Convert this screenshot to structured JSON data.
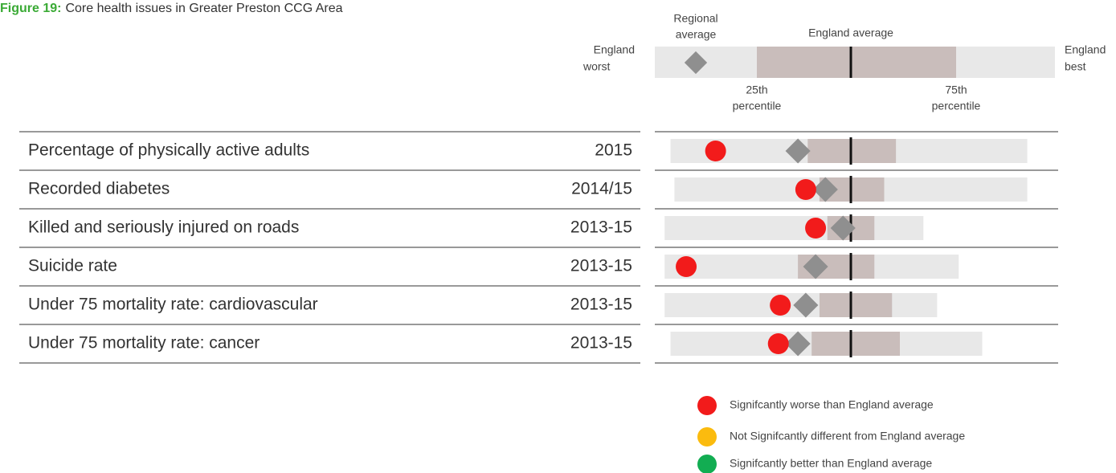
{
  "chart_data": {
    "type": "spine",
    "title_prefix": "Figure 19:",
    "title": "Core health issues in Greater Preston CCG Area",
    "key": {
      "worst": [
        "England",
        "worst"
      ],
      "best": [
        "England",
        "best"
      ],
      "regional": [
        "Regional",
        "average"
      ],
      "average": "England average",
      "p25": [
        "25th",
        "percentile"
      ],
      "p75": [
        "75th",
        "percentile"
      ]
    },
    "xlim": [
      -1,
      1
    ],
    "average": 0,
    "rows": [
      {
        "indicator": "Percentage of physically active adults",
        "period": "2015",
        "worst": -0.92,
        "p25": -0.22,
        "p75": 0.23,
        "best": 0.9,
        "regional": -0.27,
        "value": -0.69,
        "status": 0
      },
      {
        "indicator": "Recorded diabetes",
        "period": "2014/15",
        "worst": -0.9,
        "p25": -0.16,
        "p75": 0.17,
        "best": 0.9,
        "regional": -0.13,
        "value": -0.23,
        "status": 0
      },
      {
        "indicator": "Killed and seriously injured on roads",
        "period": "2013-15",
        "worst": -0.95,
        "p25": -0.12,
        "p75": 0.12,
        "best": 0.37,
        "regional": -0.04,
        "value": -0.18,
        "status": 0
      },
      {
        "indicator": "Suicide rate",
        "period": "2013-15",
        "worst": -0.95,
        "p25": -0.27,
        "p75": 0.12,
        "best": 0.55,
        "regional": -0.18,
        "value": -0.84,
        "status": 0
      },
      {
        "indicator": "Under 75 mortality rate: cardiovascular",
        "period": "2013-15",
        "worst": -0.95,
        "p25": -0.16,
        "p75": 0.21,
        "best": 0.44,
        "regional": -0.23,
        "value": -0.36,
        "status": 0
      },
      {
        "indicator": "Under 75 mortality rate: cancer",
        "period": "2013-15",
        "worst": -0.92,
        "p25": -0.2,
        "p75": 0.25,
        "best": 0.67,
        "regional": -0.27,
        "value": -0.37,
        "status": 0
      }
    ],
    "legend": [
      {
        "name": "Signifcantly worse than  England average",
        "color": "#f21b1b"
      },
      {
        "name": "Not Signifcantly different from  England average",
        "color": "#fbbb0e"
      },
      {
        "name": "Signifcantly better than England average",
        "color": "#12ad52"
      }
    ],
    "colors": {
      "range": "#e8e8e8",
      "iqr": "#c9bdbb",
      "regional": "#8f8f8f",
      "average": "#111111",
      "title_prefix": "#3aaa35"
    }
  }
}
